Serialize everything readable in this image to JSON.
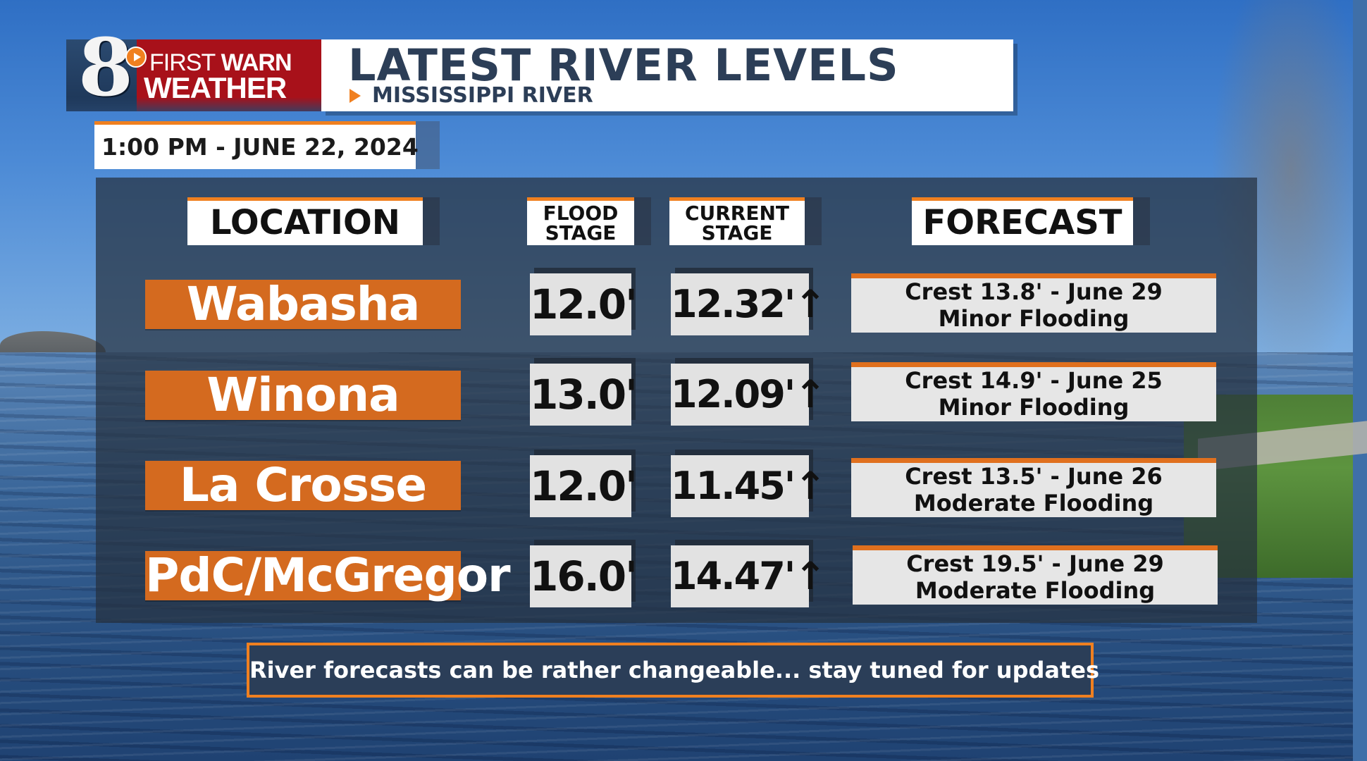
{
  "brand": {
    "channel": "8",
    "line1_a": "FIRST",
    "line1_b": " WARN",
    "line2": "WEATHER",
    "colors": {
      "red": "#a8111a",
      "orange": "#f08020",
      "navy": "#2c3e57"
    }
  },
  "header": {
    "title": "LATEST RIVER LEVELS",
    "subtitle": "MISSISSIPPI RIVER",
    "timestamp": "1:00 PM - JUNE 22, 2024"
  },
  "columns": {
    "location": "LOCATION",
    "flood_stage_1": "FLOOD",
    "flood_stage_2": "STAGE",
    "current_stage_1": "CURRENT",
    "current_stage_2": "STAGE",
    "forecast": "FORECAST"
  },
  "rows": [
    {
      "location": "Wabasha",
      "flood_stage": "12.0'",
      "current_stage": "12.32'↑",
      "forecast_crest": "Crest 13.8' - June 29",
      "forecast_category": "Minor Flooding"
    },
    {
      "location": "Winona",
      "flood_stage": "13.0'",
      "current_stage": "12.09'↑",
      "forecast_crest": "Crest 14.9' - June 25",
      "forecast_category": "Minor Flooding"
    },
    {
      "location": "La Crosse",
      "flood_stage": "12.0'",
      "current_stage": "11.45'↑",
      "forecast_crest": "Crest 13.5' - June 26",
      "forecast_category": "Moderate Flooding"
    },
    {
      "location": "PdC/McGregor",
      "flood_stage": "16.0'",
      "current_stage": "14.47'↑",
      "forecast_crest": "Crest 19.5' - June 29",
      "forecast_category": "Moderate Flooding"
    }
  ],
  "footer_note": "River forecasts can be rather changeable... stay tuned for updates"
}
